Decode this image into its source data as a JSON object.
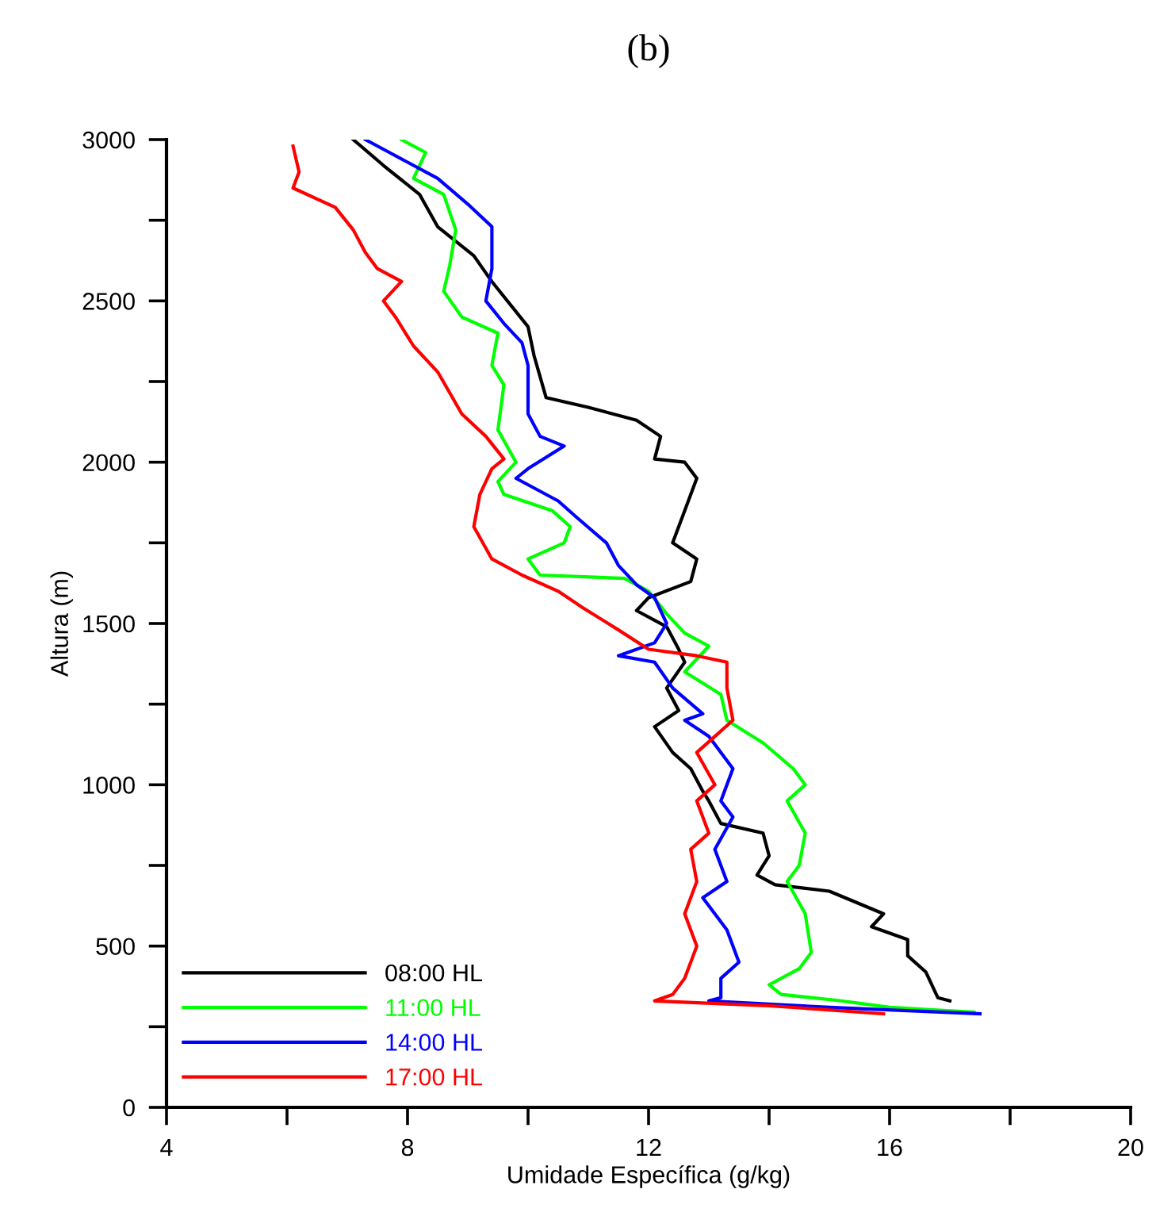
{
  "chart_data": {
    "type": "line",
    "title": "(b)",
    "xlabel": "Umidade Específica (g/kg)",
    "ylabel": "Altura (m)",
    "xlim": [
      4,
      20
    ],
    "ylim": [
      0,
      3000
    ],
    "xticks": [
      4,
      {
        "value": 6,
        "label": null
      },
      8,
      {
        "value": 10,
        "label": null
      },
      12,
      {
        "value": 14,
        "label": null
      },
      16,
      {
        "value": 18,
        "label": null
      },
      20
    ],
    "yticks": [
      0,
      {
        "value": 250,
        "label": null
      },
      500,
      {
        "value": 750,
        "label": null
      },
      1000,
      {
        "value": 1250,
        "label": null
      },
      1500,
      {
        "value": 1750,
        "label": null
      },
      2000,
      {
        "value": 2250,
        "label": null
      },
      2500,
      {
        "value": 2750,
        "label": null
      },
      3000
    ],
    "grid": false,
    "legend": "bottom left",
    "marker": "none",
    "line_style": "solid",
    "series": [
      {
        "name": "08:00 HL",
        "color": "#000000",
        "x": [
          7.1,
          7.6,
          8.2,
          8.5,
          9.1,
          9.4,
          10.0,
          10.1,
          10.3,
          11.0,
          11.8,
          12.2,
          12.1,
          12.6,
          12.8,
          12.6,
          12.4,
          12.8,
          12.7,
          12.0,
          11.8,
          12.3,
          12.5,
          12.6,
          12.3,
          12.5,
          12.1,
          12.4,
          12.7,
          12.9,
          13.0,
          13.2,
          13.9,
          14.0,
          13.8,
          14.1,
          15.0,
          15.9,
          15.7,
          16.3,
          16.3,
          16.6,
          16.7,
          16.8,
          17.0
        ],
        "values": [
          3000,
          2920,
          2830,
          2730,
          2640,
          2560,
          2420,
          2330,
          2200,
          2170,
          2130,
          2080,
          2010,
          2000,
          1950,
          1850,
          1750,
          1700,
          1630,
          1580,
          1540,
          1490,
          1420,
          1380,
          1300,
          1230,
          1180,
          1100,
          1050,
          980,
          950,
          880,
          850,
          780,
          720,
          690,
          670,
          600,
          560,
          520,
          470,
          420,
          380,
          340,
          330
        ]
      },
      {
        "name": "11:00 HL",
        "color": "#00ff00",
        "x": [
          7.9,
          8.3,
          8.1,
          8.6,
          8.8,
          8.7,
          8.6,
          8.9,
          9.5,
          9.4,
          9.6,
          9.5,
          9.8,
          9.5,
          9.6,
          10.4,
          10.7,
          10.6,
          10.0,
          10.2,
          11.6,
          12.0,
          12.3,
          12.6,
          13.0,
          12.6,
          13.2,
          13.3,
          13.9,
          14.4,
          14.6,
          14.3,
          14.6,
          14.5,
          14.3,
          14.6,
          14.7,
          14.5,
          14.0,
          14.2,
          15.2,
          16.0,
          17.4
        ],
        "values": [
          3000,
          2960,
          2880,
          2830,
          2720,
          2610,
          2530,
          2450,
          2400,
          2300,
          2240,
          2100,
          2000,
          1940,
          1900,
          1850,
          1800,
          1750,
          1700,
          1650,
          1640,
          1600,
          1530,
          1470,
          1430,
          1350,
          1280,
          1200,
          1130,
          1050,
          1000,
          950,
          850,
          750,
          700,
          600,
          480,
          430,
          380,
          350,
          330,
          310,
          295
        ]
      },
      {
        "name": "14:00 HL",
        "color": "#0000ff",
        "x": [
          7.3,
          7.7,
          8.5,
          9.0,
          9.4,
          9.4,
          9.4,
          9.3,
          9.6,
          9.9,
          10.0,
          10.0,
          10.2,
          10.6,
          10.0,
          9.8,
          10.5,
          10.8,
          11.3,
          11.5,
          11.8,
          12.1,
          12.3,
          12.1,
          11.5,
          12.1,
          12.4,
          12.9,
          12.6,
          13.0,
          13.4,
          13.2,
          13.4,
          13.1,
          13.3,
          12.9,
          13.3,
          13.5,
          13.2,
          13.2,
          13.0,
          15.0,
          17.5
        ],
        "values": [
          3000,
          2960,
          2880,
          2800,
          2730,
          2680,
          2600,
          2500,
          2430,
          2370,
          2300,
          2150,
          2080,
          2050,
          1980,
          1950,
          1880,
          1830,
          1750,
          1680,
          1620,
          1580,
          1500,
          1440,
          1400,
          1380,
          1300,
          1220,
          1200,
          1150,
          1050,
          950,
          900,
          800,
          700,
          650,
          550,
          450,
          400,
          340,
          330,
          310,
          290
        ]
      },
      {
        "name": "17:00 HL",
        "color": "#ff0000",
        "x": [
          6.1,
          6.2,
          6.1,
          6.8,
          7.1,
          7.3,
          7.5,
          7.9,
          7.6,
          7.8,
          8.1,
          8.5,
          8.9,
          9.3,
          9.6,
          9.4,
          9.2,
          9.1,
          9.4,
          9.9,
          10.5,
          10.9,
          11.5,
          12.0,
          12.8,
          13.3,
          13.3,
          13.4,
          13.1,
          12.8,
          13.1,
          12.8,
          13.0,
          12.7,
          12.8,
          12.6,
          12.8,
          12.6,
          12.4,
          12.1,
          14.0,
          15.9
        ],
        "values": [
          2980,
          2900,
          2850,
          2790,
          2720,
          2650,
          2600,
          2560,
          2500,
          2450,
          2360,
          2280,
          2150,
          2080,
          2010,
          1980,
          1900,
          1800,
          1700,
          1650,
          1600,
          1550,
          1480,
          1420,
          1400,
          1380,
          1300,
          1200,
          1150,
          1100,
          1000,
          950,
          850,
          800,
          700,
          600,
          500,
          400,
          350,
          330,
          315,
          290
        ]
      }
    ]
  }
}
